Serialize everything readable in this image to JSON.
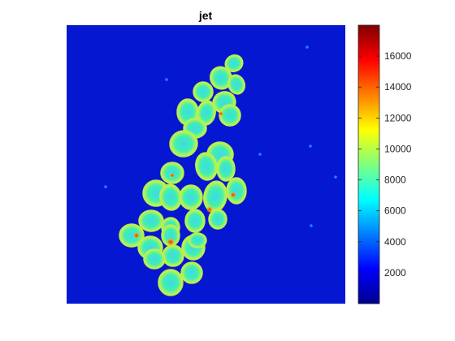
{
  "figure": {
    "title": "jet"
  },
  "chart_data": {
    "type": "heatmap",
    "title": "jet",
    "colormap": "jet",
    "xlabel": "",
    "ylabel": "",
    "axes_ticks_visible": false,
    "clim": [
      0,
      18000
    ],
    "colorbar": {
      "position": "right",
      "ticks": [
        2000,
        4000,
        6000,
        8000,
        10000,
        12000,
        14000,
        16000
      ],
      "tick_labels": [
        "2000",
        "4000",
        "6000",
        "8000",
        "10000",
        "12000",
        "14000",
        "16000"
      ]
    },
    "image_description_values": {
      "background_level": 1500,
      "cell_interior_level": 7500,
      "cell_edge_level": 11000,
      "hotspot_max_level": 17500
    },
    "colors": {
      "jet_stops": [
        "#00008f",
        "#0000ff",
        "#00ffff",
        "#ffff00",
        "#ff0000",
        "#800000"
      ]
    }
  }
}
